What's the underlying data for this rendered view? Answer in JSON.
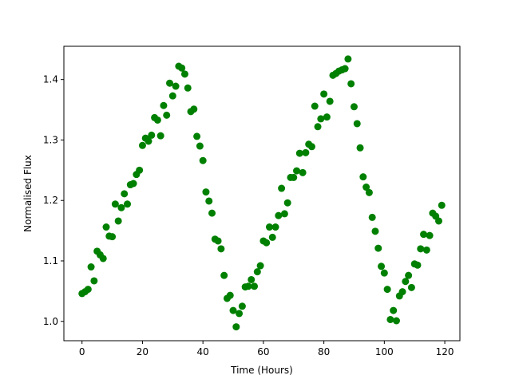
{
  "chart_data": {
    "type": "scatter",
    "xlabel": "Time (Hours)",
    "ylabel": "Normalised Flux",
    "xlim": [
      -6,
      125
    ],
    "ylim": [
      0.968,
      1.455
    ],
    "xticks": [
      0,
      20,
      40,
      60,
      80,
      100,
      120
    ],
    "yticks": [
      1.0,
      1.1,
      1.2,
      1.3,
      1.4
    ],
    "xtick_labels": [
      "0",
      "20",
      "40",
      "60",
      "80",
      "100",
      "120"
    ],
    "ytick_labels": [
      "1.0",
      "1.1",
      "1.2",
      "1.3",
      "1.4"
    ],
    "grid": false,
    "marker_color": "#008000",
    "series": [
      {
        "x": [
          0,
          1,
          2,
          3,
          4,
          5,
          6,
          7,
          8,
          9,
          10,
          11,
          12,
          13,
          14,
          15,
          16,
          17,
          18,
          19,
          20,
          21,
          22,
          23,
          24,
          25,
          26,
          27,
          28,
          29,
          30,
          31,
          32,
          33,
          34,
          35,
          36,
          37,
          38,
          39,
          40,
          41,
          42,
          43,
          44,
          45,
          46,
          47,
          48,
          49,
          50,
          51,
          52,
          53,
          54,
          55,
          56,
          57,
          58,
          59,
          60,
          61,
          62,
          63,
          64,
          65,
          66,
          67,
          68,
          69,
          70,
          71,
          72,
          73,
          74,
          75,
          76,
          77,
          78,
          79,
          80,
          81,
          82,
          83,
          84,
          85,
          86,
          87,
          88,
          89,
          90,
          91,
          92,
          93,
          94,
          95,
          96,
          97,
          98,
          99,
          100,
          101,
          102,
          103,
          104,
          105,
          106,
          107,
          108,
          109,
          110,
          111,
          112,
          113,
          114,
          115,
          116,
          117,
          118,
          119
        ],
        "y": [
          1.046,
          1.049,
          1.053,
          1.09,
          1.067,
          1.116,
          1.11,
          1.104,
          1.156,
          1.141,
          1.14,
          1.194,
          1.166,
          1.188,
          1.211,
          1.194,
          1.226,
          1.228,
          1.243,
          1.25,
          1.291,
          1.303,
          1.298,
          1.308,
          1.337,
          1.333,
          1.307,
          1.357,
          1.341,
          1.394,
          1.373,
          1.389,
          1.422,
          1.419,
          1.409,
          1.386,
          1.347,
          1.351,
          1.306,
          1.29,
          1.266,
          1.214,
          1.199,
          1.179,
          1.136,
          1.133,
          1.12,
          1.076,
          1.038,
          1.043,
          1.018,
          0.991,
          1.013,
          1.025,
          1.057,
          1.058,
          1.069,
          1.058,
          1.082,
          1.092,
          1.133,
          1.13,
          1.156,
          1.139,
          1.156,
          1.175,
          1.22,
          1.178,
          1.196,
          1.238,
          1.238,
          1.249,
          1.278,
          1.246,
          1.279,
          1.293,
          1.289,
          1.356,
          1.322,
          1.335,
          1.376,
          1.338,
          1.364,
          1.407,
          1.41,
          1.414,
          1.416,
          1.418,
          1.434,
          1.393,
          1.355,
          1.327,
          1.287,
          1.239,
          1.222,
          1.213,
          1.172,
          1.149,
          1.121,
          1.091,
          1.08,
          1.053,
          1.003,
          1.018,
          1.001,
          1.042,
          1.049,
          1.066,
          1.076,
          1.056,
          1.095,
          1.093,
          1.12,
          1.144,
          1.118,
          1.142,
          1.179,
          1.174,
          1.166,
          1.192
        ]
      }
    ]
  }
}
